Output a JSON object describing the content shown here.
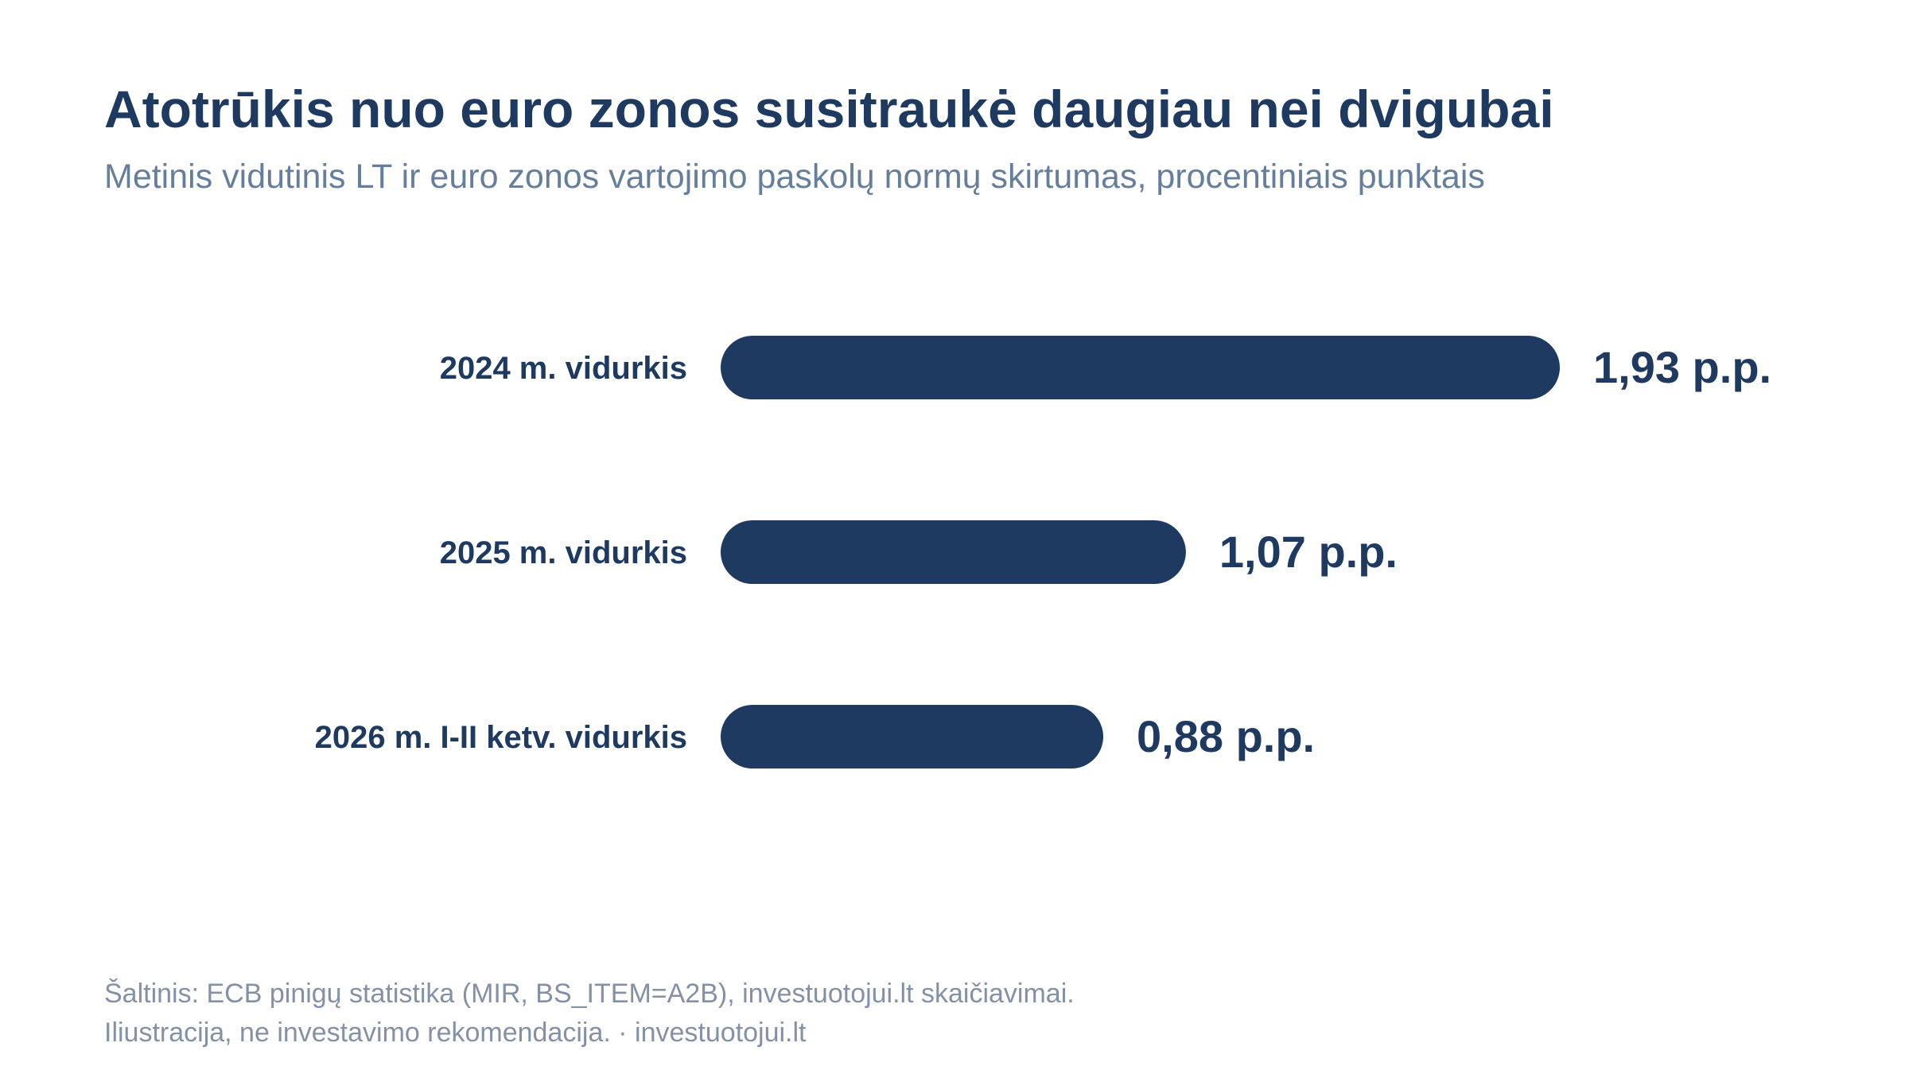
{
  "title": "Atotrūkis nuo euro zonos susitraukė daugiau nei dvigubai",
  "subtitle": "Metinis vidutinis LT ir euro zonos vartojimo paskolų normų skirtumas, procentiniais punktais",
  "footer": {
    "source": "Šaltinis: ECB pinigų statistika (MIR, BS_ITEM=A2B), investuotojui.lt skaičiavimai.",
    "note": "Iliustracija, ne investavimo rekomendacija. · investuotojui.lt"
  },
  "colors": {
    "bar": "#1f3a60",
    "label": "#1f3a60",
    "title": "#1f3a60",
    "subtitle": "#667e9e",
    "footer": "#8391a7"
  },
  "chart_data": {
    "type": "bar",
    "orientation": "horizontal",
    "categories": [
      "2024 m. vidurkis",
      "2025 m. vidurkis",
      "2026 m. I-II ketv. vidurkis"
    ],
    "values": [
      1.93,
      1.07,
      0.88
    ],
    "value_labels": [
      "1,93 p.p.",
      "1,07 p.p.",
      "0,88 p.p."
    ],
    "xlim": [
      0,
      1.93
    ],
    "grid": false,
    "legend": "none"
  }
}
